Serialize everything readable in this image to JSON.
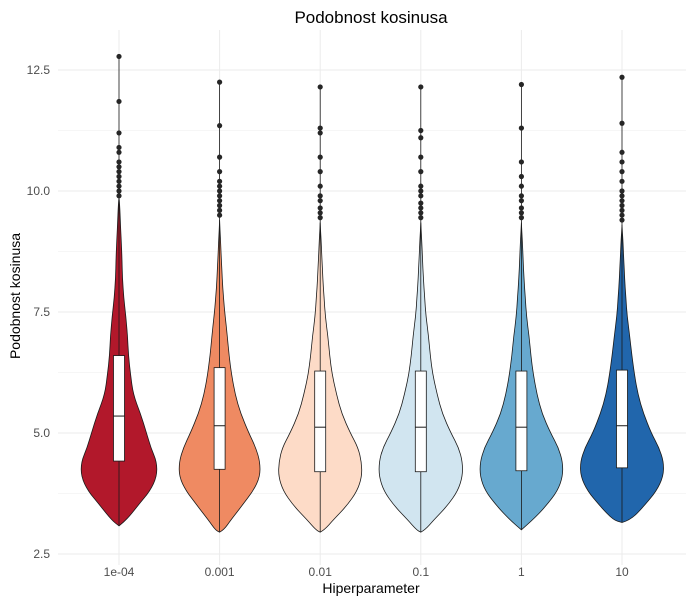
{
  "chart_data": {
    "type": "violin",
    "title": "Podobnost kosinusa",
    "xlabel": "Hiperparameter",
    "ylabel": "Podobnost kosinusa",
    "ylim": [
      2.5,
      13.0
    ],
    "yticks": [
      2.5,
      5.0,
      7.5,
      10.0,
      12.5
    ],
    "ytick_labels": [
      "2.5",
      "5.0",
      "7.5",
      "10.0",
      "12.5"
    ],
    "grid": true,
    "categories": [
      "1e-04",
      "0.001",
      "0.01",
      "0.1",
      "1",
      "10"
    ],
    "colors": [
      "#b2182b",
      "#ef8a62",
      "#fddbc7",
      "#d1e5f0",
      "#67a9cf",
      "#2166ac"
    ],
    "series": [
      {
        "category": "1e-04",
        "min": 3.08,
        "q1": 4.42,
        "median": 5.35,
        "q3": 6.6,
        "whisker_high": 9.85,
        "max": 12.78,
        "outliers": [
          9.9,
          10.0,
          10.1,
          10.2,
          10.3,
          10.4,
          10.5,
          10.6,
          10.8,
          10.9,
          11.2,
          11.85,
          12.78
        ]
      },
      {
        "category": "0.001",
        "min": 2.95,
        "q1": 4.25,
        "median": 5.15,
        "q3": 6.35,
        "whisker_high": 9.4,
        "max": 12.25,
        "outliers": [
          9.5,
          9.6,
          9.7,
          9.8,
          9.9,
          10.0,
          10.1,
          10.2,
          10.4,
          10.7,
          11.35,
          12.25
        ]
      },
      {
        "category": "0.01",
        "min": 2.95,
        "q1": 4.2,
        "median": 5.12,
        "q3": 6.28,
        "whisker_high": 9.35,
        "max": 12.15,
        "outliers": [
          9.45,
          9.55,
          9.65,
          9.8,
          9.9,
          10.1,
          10.4,
          10.7,
          11.2,
          11.3,
          12.15
        ]
      },
      {
        "category": "0.1",
        "min": 2.95,
        "q1": 4.2,
        "median": 5.12,
        "q3": 6.28,
        "whisker_high": 9.35,
        "max": 12.15,
        "outliers": [
          9.45,
          9.55,
          9.65,
          9.75,
          9.9,
          10.0,
          10.1,
          10.4,
          10.7,
          11.1,
          11.25,
          12.15
        ]
      },
      {
        "category": "1",
        "min": 3.0,
        "q1": 4.22,
        "median": 5.12,
        "q3": 6.28,
        "whisker_high": 9.35,
        "max": 12.2,
        "outliers": [
          9.45,
          9.55,
          9.65,
          9.8,
          9.9,
          10.1,
          10.3,
          10.6,
          11.3,
          12.2
        ]
      },
      {
        "category": "10",
        "min": 3.15,
        "q1": 4.28,
        "median": 5.15,
        "q3": 6.3,
        "whisker_high": 9.3,
        "max": 12.35,
        "outliers": [
          9.4,
          9.5,
          9.6,
          9.7,
          9.8,
          9.9,
          10.0,
          10.2,
          10.4,
          10.6,
          10.8,
          11.4,
          12.35
        ]
      }
    ],
    "violin_profiles": {
      "y": [
        3.0,
        3.2,
        3.5,
        3.8,
        4.1,
        4.4,
        4.7,
        5.0,
        5.4,
        5.8,
        6.2,
        6.6,
        7.0,
        7.4,
        7.8,
        8.2,
        8.6,
        9.0,
        9.4,
        9.8
      ],
      "widths": [
        [
          0.05,
          0.17,
          0.44,
          0.72,
          0.88,
          0.88,
          0.74,
          0.64,
          0.5,
          0.33,
          0.27,
          0.22,
          0.2,
          0.16,
          0.11,
          0.08,
          0.07,
          0.05,
          0.03,
          0.01
        ],
        [
          0.1,
          0.26,
          0.52,
          0.78,
          0.94,
          0.94,
          0.84,
          0.68,
          0.49,
          0.36,
          0.28,
          0.22,
          0.18,
          0.13,
          0.09,
          0.06,
          0.04,
          0.02,
          0.01,
          0.0
        ],
        [
          0.1,
          0.3,
          0.62,
          0.86,
          0.97,
          0.96,
          0.88,
          0.7,
          0.5,
          0.38,
          0.28,
          0.22,
          0.18,
          0.12,
          0.09,
          0.06,
          0.04,
          0.02,
          0.01,
          0.0
        ],
        [
          0.1,
          0.3,
          0.62,
          0.86,
          0.97,
          0.97,
          0.88,
          0.7,
          0.5,
          0.38,
          0.28,
          0.22,
          0.18,
          0.12,
          0.09,
          0.06,
          0.04,
          0.02,
          0.01,
          0.0
        ],
        [
          0.08,
          0.26,
          0.58,
          0.84,
          0.96,
          0.96,
          0.86,
          0.68,
          0.48,
          0.36,
          0.28,
          0.22,
          0.18,
          0.12,
          0.09,
          0.06,
          0.04,
          0.02,
          0.01,
          0.0
        ],
        [
          0.0,
          0.2,
          0.52,
          0.8,
          0.96,
          0.97,
          0.86,
          0.68,
          0.5,
          0.37,
          0.29,
          0.23,
          0.18,
          0.12,
          0.09,
          0.06,
          0.04,
          0.02,
          0.01,
          0.0
        ]
      ]
    }
  }
}
